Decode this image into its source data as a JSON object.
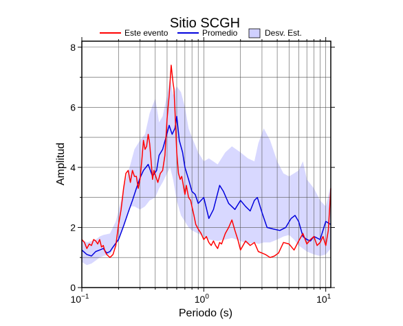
{
  "chart_data": {
    "type": "line",
    "title": "Sitio SCGH",
    "xlabel": "Periodo (s)",
    "ylabel": "Amplitud",
    "x_scale": "log",
    "xlim": [
      0.1,
      11
    ],
    "ylim": [
      0,
      8.2
    ],
    "x_ticks": [
      {
        "value": 0.1,
        "base": "10",
        "exp": "−1"
      },
      {
        "value": 1,
        "base": "10",
        "exp": "0"
      },
      {
        "value": 10,
        "base": "10",
        "exp": "1"
      }
    ],
    "y_ticks": [
      0,
      2,
      4,
      6,
      8
    ],
    "grid": true,
    "legend": {
      "position": "top",
      "items": [
        {
          "label": "Este evento",
          "kind": "line",
          "color": "#ff0000"
        },
        {
          "label": "Promedio",
          "kind": "line",
          "color": "#0000dd"
        },
        {
          "label": "Desv. Est.",
          "kind": "band",
          "color": "#d0d0ff"
        }
      ]
    },
    "band": {
      "name": "Desv. Est.",
      "color": "#d8d8ff",
      "x": [
        0.1,
        0.11,
        0.12,
        0.13,
        0.14,
        0.15,
        0.17,
        0.19,
        0.21,
        0.23,
        0.25,
        0.27,
        0.3,
        0.33,
        0.36,
        0.4,
        0.43,
        0.46,
        0.5,
        0.53,
        0.56,
        0.6,
        0.65,
        0.7,
        0.75,
        0.8,
        0.9,
        1.0,
        1.1,
        1.3,
        1.5,
        1.7,
        2.0,
        2.3,
        2.6,
        2.8,
        3.1,
        3.5,
        4.0,
        4.5,
        5.0,
        5.5,
        6.0,
        6.5,
        7.0,
        8.0,
        9.0,
        10.0,
        11.0
      ],
      "upper": [
        1.6,
        1.5,
        1.55,
        1.6,
        1.7,
        1.75,
        1.8,
        2.2,
        2.9,
        3.6,
        4.1,
        4.6,
        4.9,
        5.1,
        5.8,
        6.3,
        5.5,
        5.7,
        6.4,
        7.0,
        6.4,
        6.7,
        6.5,
        6.0,
        5.3,
        5.0,
        4.5,
        4.2,
        4.3,
        4.1,
        4.5,
        4.7,
        4.5,
        4.3,
        4.2,
        4.8,
        5.3,
        4.9,
        4.2,
        3.8,
        3.7,
        3.8,
        3.9,
        4.2,
        3.6,
        3.3,
        2.9,
        2.7,
        3.4
      ],
      "lower": [
        0.85,
        0.75,
        0.8,
        0.9,
        1.0,
        1.05,
        1.1,
        1.4,
        1.8,
        2.3,
        2.7,
        2.7,
        2.6,
        2.7,
        2.9,
        3.0,
        3.3,
        3.5,
        3.8,
        4.0,
        3.6,
        2.9,
        2.4,
        2.2,
        2.0,
        1.9,
        1.8,
        1.7,
        1.6,
        1.55,
        1.6,
        1.65,
        1.55,
        1.45,
        1.5,
        1.45,
        1.5,
        1.5,
        1.6,
        1.7,
        1.75,
        1.6,
        1.4,
        1.3,
        1.2,
        1.1,
        1.05,
        1.1,
        1.3
      ]
    },
    "series": [
      {
        "name": "Promedio",
        "color": "#0000dd",
        "x": [
          0.1,
          0.11,
          0.12,
          0.13,
          0.14,
          0.15,
          0.16,
          0.17,
          0.18,
          0.2,
          0.22,
          0.24,
          0.26,
          0.28,
          0.3,
          0.32,
          0.35,
          0.38,
          0.41,
          0.43,
          0.46,
          0.49,
          0.52,
          0.55,
          0.58,
          0.6,
          0.63,
          0.67,
          0.7,
          0.75,
          0.8,
          0.85,
          0.9,
          1.0,
          1.1,
          1.2,
          1.35,
          1.45,
          1.6,
          1.8,
          2.0,
          2.2,
          2.4,
          2.6,
          2.75,
          3.0,
          3.3,
          3.7,
          4.2,
          4.7,
          5.2,
          5.6,
          6.0,
          6.5,
          7.0,
          7.5,
          8.0,
          9.0,
          10.0,
          11.0
        ],
        "y": [
          1.25,
          1.1,
          1.05,
          1.2,
          1.25,
          1.3,
          1.15,
          1.2,
          1.35,
          1.6,
          2.05,
          2.5,
          2.9,
          3.3,
          3.65,
          3.9,
          4.1,
          3.7,
          3.9,
          4.4,
          4.6,
          5.0,
          5.4,
          5.1,
          5.3,
          5.7,
          4.9,
          4.5,
          4.0,
          3.6,
          3.2,
          3.1,
          2.8,
          3.0,
          2.3,
          2.6,
          3.4,
          3.2,
          2.8,
          2.6,
          2.9,
          2.7,
          2.55,
          2.9,
          3.0,
          2.5,
          2.0,
          1.95,
          1.9,
          2.0,
          2.3,
          2.4,
          2.2,
          1.7,
          1.6,
          1.55,
          1.7,
          1.6,
          2.2,
          2.1
        ]
      },
      {
        "name": "Este evento",
        "color": "#ff0000",
        "x": [
          0.1,
          0.105,
          0.11,
          0.115,
          0.12,
          0.125,
          0.13,
          0.135,
          0.14,
          0.145,
          0.15,
          0.155,
          0.16,
          0.165,
          0.17,
          0.18,
          0.19,
          0.2,
          0.21,
          0.22,
          0.23,
          0.24,
          0.25,
          0.26,
          0.27,
          0.28,
          0.29,
          0.3,
          0.31,
          0.32,
          0.33,
          0.34,
          0.35,
          0.36,
          0.37,
          0.38,
          0.39,
          0.4,
          0.42,
          0.44,
          0.46,
          0.48,
          0.5,
          0.52,
          0.54,
          0.56,
          0.57,
          0.58,
          0.6,
          0.62,
          0.64,
          0.66,
          0.68,
          0.7,
          0.72,
          0.75,
          0.78,
          0.8,
          0.83,
          0.86,
          0.9,
          0.95,
          1.0,
          1.05,
          1.1,
          1.15,
          1.2,
          1.25,
          1.3,
          1.35,
          1.4,
          1.5,
          1.6,
          1.7,
          1.8,
          1.9,
          2.0,
          2.2,
          2.4,
          2.6,
          2.8,
          3.0,
          3.2,
          3.5,
          3.8,
          4.1,
          4.5,
          5.0,
          5.5,
          6.0,
          6.5,
          7.0,
          7.5,
          8.0,
          8.5,
          9.0,
          9.5,
          10.0,
          10.5,
          11.0
        ],
        "y": [
          1.6,
          1.5,
          1.3,
          1.45,
          1.4,
          1.6,
          1.55,
          1.45,
          1.6,
          1.35,
          1.4,
          1.2,
          1.1,
          1.05,
          1.0,
          1.1,
          1.4,
          2.1,
          2.6,
          3.3,
          3.8,
          3.9,
          3.5,
          3.9,
          3.7,
          3.7,
          3.3,
          3.6,
          4.2,
          4.9,
          4.6,
          4.7,
          5.1,
          4.8,
          4.2,
          3.6,
          3.9,
          3.75,
          3.5,
          3.8,
          3.9,
          4.4,
          5.6,
          6.4,
          7.4,
          6.8,
          6.6,
          5.9,
          4.5,
          3.8,
          3.6,
          3.7,
          3.4,
          3.1,
          3.4,
          3.0,
          2.9,
          2.7,
          2.4,
          2.1,
          1.95,
          1.8,
          1.6,
          1.7,
          1.5,
          1.4,
          1.55,
          1.4,
          1.3,
          1.5,
          1.45,
          1.8,
          2.0,
          2.25,
          1.9,
          1.6,
          1.25,
          1.55,
          1.4,
          1.5,
          1.2,
          1.15,
          1.1,
          1.0,
          1.05,
          1.15,
          1.5,
          1.45,
          1.25,
          1.55,
          1.8,
          1.45,
          1.6,
          1.7,
          1.4,
          1.5,
          1.7,
          1.4,
          1.9,
          3.3
        ]
      }
    ]
  }
}
